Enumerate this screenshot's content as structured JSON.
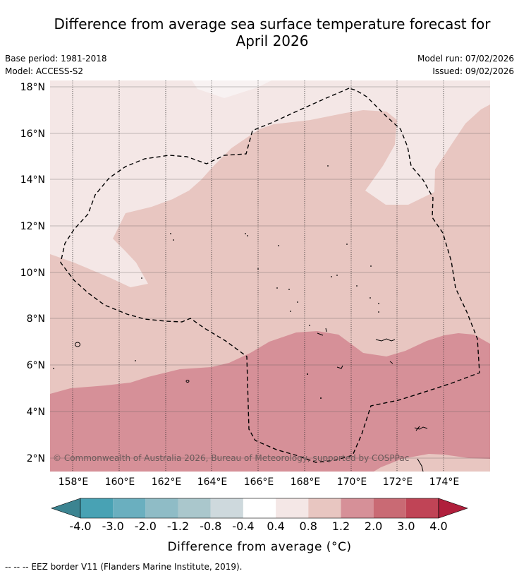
{
  "title": "Difference from average sea surface temperature forecast for April 2026",
  "title_line1": "Difference from average sea surface temperature forecast for",
  "title_line2": "April 2026",
  "meta_left": [
    "Base period: 1981-2018",
    "Model: ACCESS-S2"
  ],
  "meta_right": [
    "Model run: 07/02/2026",
    "Issued: 09/02/2026"
  ],
  "map": {
    "lat_ticks": [
      "18°N",
      "16°N",
      "14°N",
      "12°N",
      "10°N",
      "8°N",
      "6°N",
      "4°N",
      "2°N"
    ],
    "lon_ticks": [
      "158°E",
      "160°E",
      "162°E",
      "164°E",
      "166°E",
      "168°E",
      "170°E",
      "172°E",
      "174°E"
    ],
    "copyright": "© Commonwealth of Australia 2026, Bureau of Meteorology, supported by COSPPac"
  },
  "colorbar": {
    "labels": [
      "-4.0",
      "-3.0",
      "-2.0",
      "-1.2",
      "-0.8",
      "-0.4",
      "0.4",
      "0.8",
      "1.2",
      "2.0",
      "3.0",
      "4.0"
    ],
    "colors": [
      "#3c8491",
      "#48a2b4",
      "#6aafbf",
      "#8fbcc6",
      "#aac7cc",
      "#ced9dd",
      "#ffffff",
      "#f4e7e6",
      "#e8c6c1",
      "#d69098",
      "#c96a74",
      "#c04456",
      "#b01f3c"
    ],
    "title": "Difference from average (°C)"
  },
  "footnote": "--  --  -- EEZ border V11 (Flanders Marine Institute, 2019)."
}
